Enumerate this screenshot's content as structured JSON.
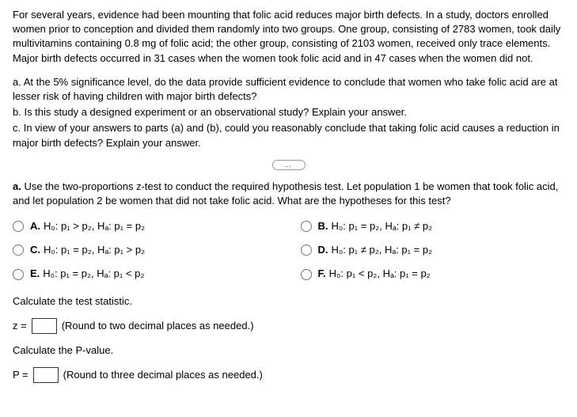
{
  "intro": "For several years, evidence had been mounting that folic acid reduces major birth defects. In a study, doctors enrolled women prior to conception and divided them randomly into two groups. One group, consisting of 2783 women, took daily multivitamins containing 0.8 mg of folic acid; the other group, consisting of 2103 women, received only trace elements. Major birth defects occurred in 31 cases when the women took folic acid and in 47 cases when the women did not.",
  "q_a": "a. At the 5% significance level, do the data provide sufficient evidence to conclude that women who take folic acid are at lesser risk of having children with major birth defects?",
  "q_b": "b. Is this study a designed experiment or an observational study? Explain your answer.",
  "q_c": "c. In view of your answers to parts (a) and (b), could you reasonably conclude that taking folic acid causes a reduction in major birth defects? Explain your answer.",
  "divider": "…",
  "section_a_prompt": "a. Use the two-proportions z-test to conduct the required hypothesis test. Let population 1 be women that took folic acid, and let population 2 be women that did not take folic acid. What are the hypotheses for this test?",
  "options": {
    "A": {
      "letter": "A.",
      "text": "H₀: p₁ > p₂, Hₐ: p₁ = p₂"
    },
    "B": {
      "letter": "B.",
      "text": "H₀: p₁ = p₂, Hₐ: p₁ ≠ p₂"
    },
    "C": {
      "letter": "C.",
      "text": "H₀: p₁ = p₂, Hₐ: p₁ > p₂"
    },
    "D": {
      "letter": "D.",
      "text": "H₀: p₁ ≠ p₂, Hₐ: p₁ = p₂"
    },
    "E": {
      "letter": "E.",
      "text": "H₀: p₁ = p₂, Hₐ: p₁ < p₂"
    },
    "F": {
      "letter": "F.",
      "text": "H₀: p₁ < p₂, Hₐ: p₁ = p₂"
    }
  },
  "calc_stat_label": "Calculate the test statistic.",
  "z_prefix": "z =",
  "z_hint": "(Round to two decimal places as needed.)",
  "calc_p_label": "Calculate the P-value.",
  "p_prefix": "P =",
  "p_hint": "(Round to three decimal places as needed.)"
}
